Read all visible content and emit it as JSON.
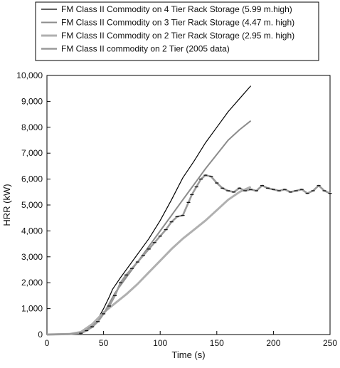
{
  "chart_data": {
    "type": "line",
    "xlabel": "Time (s)",
    "ylabel": "HRR (kW)",
    "xlim": [
      0,
      250
    ],
    "ylim": [
      0,
      10000
    ],
    "x_ticks": [
      0,
      50,
      100,
      150,
      200,
      250
    ],
    "y_ticks": [
      0,
      1000,
      2000,
      3000,
      4000,
      5000,
      6000,
      7000,
      8000,
      9000,
      10000
    ],
    "x_tick_labels": [
      "0",
      "50",
      "100",
      "150",
      "200",
      "250"
    ],
    "y_tick_labels": [
      "0",
      "1,000",
      "2,000",
      "3,000",
      "4,000",
      "5,000",
      "6,000",
      "7,000",
      "8,000",
      "9,000",
      "10,000"
    ],
    "grid": false,
    "legend_position": "top",
    "series": [
      {
        "name": "FM Class II Commodity on 4 Tier Rack Storage (5.99 m.high)",
        "color": "#000000",
        "style": "thin",
        "x": [
          0,
          20,
          30,
          40,
          45,
          50,
          55,
          58,
          65,
          75,
          90,
          100,
          110,
          120,
          130,
          140,
          150,
          160,
          170,
          180
        ],
        "y": [
          0,
          20,
          80,
          350,
          600,
          1000,
          1450,
          1750,
          2200,
          2800,
          3700,
          4400,
          5200,
          6050,
          6700,
          7400,
          8000,
          8600,
          9100,
          9600
        ]
      },
      {
        "name": "FM Class II Commodity on 3 Tier Rack Storage (4.47 m. high)",
        "color": "#8c8c8c",
        "style": "medium",
        "x": [
          0,
          20,
          30,
          40,
          45,
          50,
          55,
          60,
          70,
          80,
          90,
          100,
          110,
          120,
          130,
          140,
          150,
          160,
          170,
          180
        ],
        "y": [
          0,
          20,
          70,
          280,
          500,
          800,
          1200,
          1600,
          2200,
          2800,
          3400,
          4000,
          4600,
          5200,
          5800,
          6400,
          6950,
          7500,
          7900,
          8250
        ]
      },
      {
        "name": "FM Class II Commodity on 2 Tier Rack Storage (2.95 m. high)",
        "color": "#b0b0b0",
        "style": "thick",
        "x": [
          0,
          20,
          30,
          40,
          50,
          60,
          70,
          80,
          90,
          100,
          110,
          120,
          130,
          140,
          150,
          160,
          170,
          180
        ],
        "y": [
          0,
          20,
          100,
          400,
          850,
          1200,
          1550,
          1950,
          2400,
          2850,
          3300,
          3700,
          4050,
          4400,
          4800,
          5200,
          5500,
          5700
        ]
      },
      {
        "name": "FM Class II commodity on 2 Tier (2005 data)",
        "color": "#9a9a9a",
        "style": "noisy",
        "x": [
          0,
          20,
          30,
          35,
          40,
          45,
          50,
          55,
          60,
          65,
          70,
          75,
          80,
          85,
          90,
          95,
          100,
          105,
          110,
          115,
          120,
          125,
          128,
          132,
          136,
          140,
          145,
          150,
          155,
          160,
          165,
          170,
          175,
          180,
          185,
          190,
          195,
          200,
          205,
          210,
          215,
          220,
          225,
          230,
          235,
          240,
          245,
          250
        ],
        "y": [
          0,
          20,
          50,
          150,
          300,
          500,
          800,
          1100,
          1500,
          2000,
          2300,
          2550,
          2800,
          3050,
          3300,
          3550,
          3800,
          4050,
          4350,
          4550,
          4600,
          5100,
          5400,
          5700,
          6000,
          6150,
          6100,
          5850,
          5650,
          5550,
          5500,
          5650,
          5550,
          5600,
          5550,
          5750,
          5650,
          5600,
          5550,
          5600,
          5500,
          5550,
          5600,
          5450,
          5550,
          5750,
          5550,
          5450
        ]
      }
    ]
  }
}
